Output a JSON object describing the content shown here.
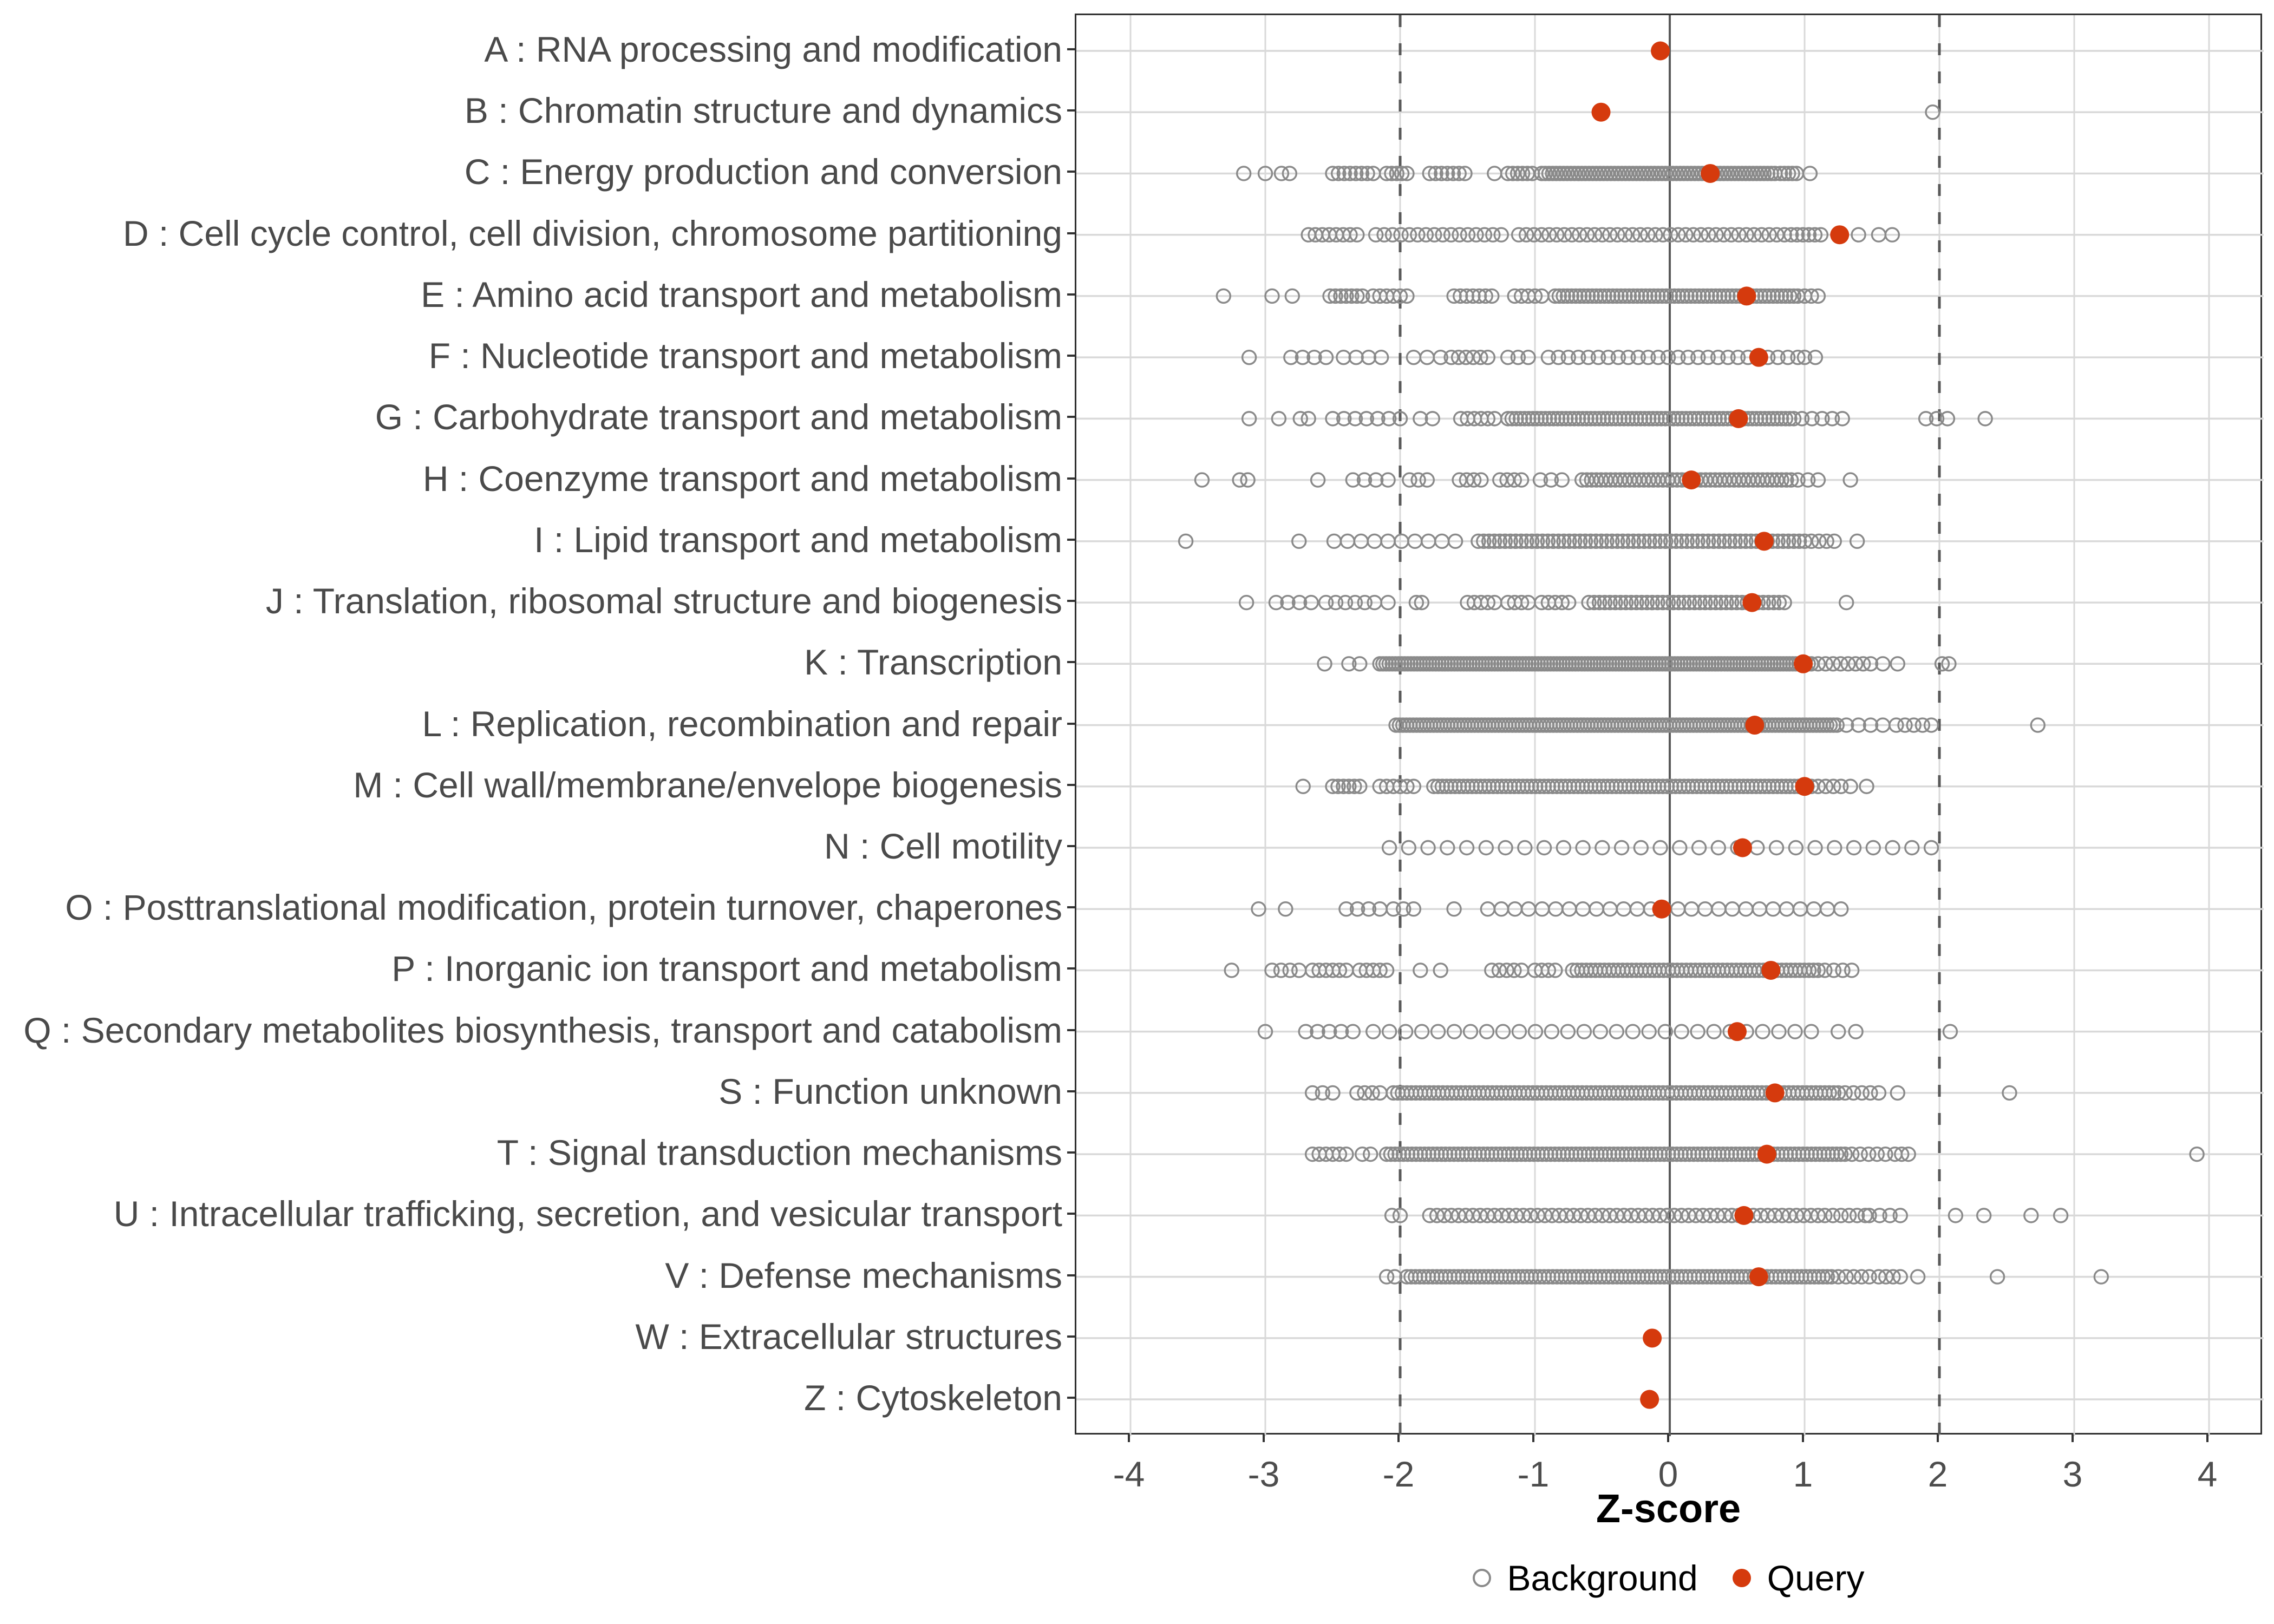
{
  "chart_data": {
    "type": "scatter",
    "subtype": "horizontal-strip-dot-plot",
    "title": "",
    "xlabel": "Z-score",
    "x_ticks": [
      -4,
      -3,
      -2,
      -1,
      0,
      1,
      2,
      3,
      4
    ],
    "xlim": [
      -4.4,
      4.4
    ],
    "grid": "on",
    "reference_lines": {
      "solid_at": 0,
      "dashed_at": [
        -2,
        2
      ]
    },
    "legend_position": "bottom",
    "legend": [
      {
        "label": "Background",
        "marker": "open-circle"
      },
      {
        "label": "Query",
        "marker": "filled-circle"
      }
    ],
    "colors": {
      "query": "#D53A0D",
      "background_stroke": "#8A8A8A",
      "gridline": "#D9D9D9",
      "reference_line": "#595959",
      "axis_text": "#4D4D4D",
      "panel_border": "#2F2F2F"
    },
    "categories": [
      {
        "label": "A : RNA processing and modification",
        "query": -0.07,
        "background_runs": []
      },
      {
        "label": "B : Chromatin structure and dynamics",
        "query": -0.51,
        "background_runs": [
          [
            1.95,
            1.95,
            1
          ]
        ]
      },
      {
        "label": "C : Energy production and conversion",
        "query": 0.3,
        "background_runs": [
          [
            -3.16,
            -3.16,
            1
          ],
          [
            -3.0,
            -3.0,
            1
          ],
          [
            -2.88,
            -2.82,
            2
          ],
          [
            -2.5,
            -2.2,
            8
          ],
          [
            -2.1,
            -1.95,
            5
          ],
          [
            -1.78,
            -1.52,
            7
          ],
          [
            -1.3,
            -1.3,
            1
          ],
          [
            -1.2,
            -1.02,
            6
          ],
          [
            -0.95,
            0.78,
            65
          ],
          [
            0.82,
            0.94,
            5
          ],
          [
            1.04,
            1.04,
            1
          ]
        ]
      },
      {
        "label": "D : Cell cycle control, cell division, chromosome partitioning",
        "query": 1.26,
        "background_runs": [
          [
            -2.68,
            -2.32,
            8
          ],
          [
            -2.18,
            -1.25,
            16
          ],
          [
            -1.12,
            0.85,
            36
          ],
          [
            0.9,
            1.12,
            6
          ],
          [
            1.4,
            1.4,
            1
          ],
          [
            1.55,
            1.65,
            2
          ]
        ]
      },
      {
        "label": "E : Amino acid transport and metabolism",
        "query": 0.57,
        "background_runs": [
          [
            -3.31,
            -3.31,
            1
          ],
          [
            -2.95,
            -2.95,
            1
          ],
          [
            -2.8,
            -2.8,
            1
          ],
          [
            -2.52,
            -2.28,
            7
          ],
          [
            -2.2,
            -1.95,
            6
          ],
          [
            -1.6,
            -1.32,
            7
          ],
          [
            -1.15,
            -0.95,
            5
          ],
          [
            -0.85,
            0.95,
            60
          ],
          [
            1.0,
            1.1,
            3
          ]
        ]
      },
      {
        "label": "F : Nucleotide transport and metabolism",
        "query": 0.66,
        "background_runs": [
          [
            -3.12,
            -3.12,
            1
          ],
          [
            -2.81,
            -2.55,
            4
          ],
          [
            -2.42,
            -2.14,
            4
          ],
          [
            -1.9,
            -1.7,
            3
          ],
          [
            -1.62,
            -1.35,
            6
          ],
          [
            -1.2,
            -1.05,
            3
          ],
          [
            -0.9,
            0.95,
            26
          ],
          [
            1.0,
            1.08,
            2
          ]
        ]
      },
      {
        "label": "G : Carbohydrate transport and metabolism",
        "query": 0.51,
        "background_runs": [
          [
            -3.12,
            -3.12,
            1
          ],
          [
            -2.9,
            -2.9,
            1
          ],
          [
            -2.74,
            -2.68,
            2
          ],
          [
            -2.5,
            -2.0,
            7
          ],
          [
            -1.85,
            -1.76,
            2
          ],
          [
            -1.55,
            -1.3,
            6
          ],
          [
            -1.2,
            0.92,
            70
          ],
          [
            0.98,
            1.28,
            5
          ],
          [
            1.9,
            2.06,
            3
          ],
          [
            2.34,
            2.34,
            1
          ]
        ]
      },
      {
        "label": "H : Coenzyme transport and metabolism",
        "query": 0.16,
        "background_runs": [
          [
            -3.47,
            -3.47,
            1
          ],
          [
            -3.19,
            -3.13,
            2
          ],
          [
            -2.61,
            -2.61,
            1
          ],
          [
            -2.35,
            -2.18,
            3
          ],
          [
            -2.09,
            -2.09,
            1
          ],
          [
            -1.93,
            -1.8,
            3
          ],
          [
            -1.56,
            -1.4,
            4
          ],
          [
            -1.26,
            -1.1,
            4
          ],
          [
            -0.96,
            -0.8,
            3
          ],
          [
            -0.65,
            0.9,
            45
          ],
          [
            0.95,
            1.1,
            3
          ],
          [
            1.34,
            1.34,
            1
          ]
        ]
      },
      {
        "label": "I : Lipid transport and metabolism",
        "query": 0.7,
        "background_runs": [
          [
            -3.59,
            -3.59,
            1
          ],
          [
            -2.75,
            -2.75,
            1
          ],
          [
            -2.49,
            -1.59,
            10
          ],
          [
            -1.42,
            1.0,
            62
          ],
          [
            1.05,
            1.22,
            4
          ],
          [
            1.39,
            1.39,
            1
          ]
        ]
      },
      {
        "label": "J : Translation, ribosomal structure and biogenesis",
        "query": 0.61,
        "background_runs": [
          [
            -3.14,
            -3.14,
            1
          ],
          [
            -2.92,
            -2.66,
            4
          ],
          [
            -2.55,
            -2.19,
            6
          ],
          [
            -2.09,
            -2.09,
            1
          ],
          [
            -1.88,
            -1.84,
            2
          ],
          [
            -1.5,
            -1.3,
            5
          ],
          [
            -1.2,
            -1.05,
            4
          ],
          [
            -0.95,
            -0.75,
            5
          ],
          [
            -0.6,
            0.85,
            38
          ],
          [
            1.31,
            1.31,
            1
          ]
        ]
      },
      {
        "label": "K : Transcription",
        "query": 0.99,
        "background_runs": [
          [
            -2.56,
            -2.56,
            1
          ],
          [
            -2.38,
            -2.3,
            2
          ],
          [
            -2.15,
            1.05,
            140
          ],
          [
            1.1,
            1.49,
            8
          ],
          [
            1.58,
            1.69,
            2
          ],
          [
            2.02,
            2.07,
            2
          ]
        ]
      },
      {
        "label": "L : Replication, recombination and repair",
        "query": 0.63,
        "background_runs": [
          [
            -2.03,
            1.24,
            130
          ],
          [
            1.31,
            1.58,
            4
          ],
          [
            1.68,
            1.94,
            5
          ],
          [
            2.73,
            2.73,
            1
          ]
        ]
      },
      {
        "label": "M : Cell wall/membrane/envelope biogenesis",
        "query": 1.0,
        "background_runs": [
          [
            -2.72,
            -2.72,
            1
          ],
          [
            -2.5,
            -2.3,
            6
          ],
          [
            -2.15,
            -1.9,
            6
          ],
          [
            -1.75,
            1.05,
            90
          ],
          [
            1.1,
            1.27,
            4
          ],
          [
            1.34,
            1.46,
            2
          ]
        ]
      },
      {
        "label": "N : Cell motility",
        "query": 0.54,
        "background_runs": [
          [
            -2.08,
            1.94,
            29
          ]
        ]
      },
      {
        "label": "O : Posttranslational modification, protein turnover, chaperones",
        "query": -0.06,
        "background_runs": [
          [
            -3.05,
            -3.05,
            1
          ],
          [
            -2.85,
            -2.85,
            1
          ],
          [
            -2.4,
            -2.15,
            4
          ],
          [
            -2.05,
            -1.9,
            3
          ],
          [
            -1.6,
            -1.6,
            1
          ],
          [
            -1.35,
            1.27,
            27
          ]
        ]
      },
      {
        "label": "P : Inorganic ion transport and metabolism",
        "query": 0.75,
        "background_runs": [
          [
            -3.25,
            -3.25,
            1
          ],
          [
            -2.95,
            -2.75,
            4
          ],
          [
            -2.65,
            -2.4,
            6
          ],
          [
            -2.3,
            -2.1,
            5
          ],
          [
            -1.85,
            -1.85,
            1
          ],
          [
            -1.7,
            -1.7,
            1
          ],
          [
            -1.32,
            -1.1,
            5
          ],
          [
            -1.0,
            -0.85,
            4
          ],
          [
            -0.72,
            1.1,
            55
          ],
          [
            1.15,
            1.35,
            4
          ]
        ]
      },
      {
        "label": "Q : Secondary metabolites biosynthesis, transport and catabolism",
        "query": 0.5,
        "background_runs": [
          [
            -3.0,
            -3.0,
            1
          ],
          [
            -2.7,
            -2.35,
            5
          ],
          [
            -2.2,
            1.05,
            28
          ],
          [
            1.25,
            1.38,
            2
          ],
          [
            2.08,
            2.08,
            1
          ]
        ]
      },
      {
        "label": "S : Function unknown",
        "query": 0.78,
        "background_runs": [
          [
            -2.65,
            -2.5,
            3
          ],
          [
            -2.32,
            -2.15,
            4
          ],
          [
            -2.05,
            1.25,
            100
          ],
          [
            1.3,
            1.55,
            5
          ],
          [
            1.69,
            1.69,
            1
          ],
          [
            2.52,
            2.52,
            1
          ]
        ]
      },
      {
        "label": "T : Signal transduction mechanisms",
        "query": 0.72,
        "background_runs": [
          [
            -2.65,
            -2.4,
            6
          ],
          [
            -2.28,
            -2.22,
            2
          ],
          [
            -2.1,
            1.3,
            110
          ],
          [
            1.35,
            1.6,
            5
          ],
          [
            1.67,
            1.77,
            3
          ],
          [
            3.91,
            3.91,
            1
          ]
        ]
      },
      {
        "label": "U : Intracellular trafficking, secretion, and vesicular transport",
        "query": 0.55,
        "background_runs": [
          [
            -2.06,
            -2.0,
            2
          ],
          [
            -1.78,
            1.1,
            55
          ],
          [
            1.15,
            1.45,
            6
          ],
          [
            1.48,
            1.71,
            4
          ],
          [
            2.12,
            2.12,
            1
          ],
          [
            2.33,
            2.33,
            1
          ],
          [
            2.68,
            2.68,
            1
          ],
          [
            2.9,
            2.9,
            1
          ]
        ]
      },
      {
        "label": "V : Defense mechanisms",
        "query": 0.66,
        "background_runs": [
          [
            -2.1,
            -2.04,
            2
          ],
          [
            -1.95,
            1.2,
            100
          ],
          [
            1.25,
            1.48,
            5
          ],
          [
            1.55,
            1.71,
            4
          ],
          [
            1.84,
            1.84,
            1
          ],
          [
            2.43,
            2.43,
            1
          ],
          [
            3.2,
            3.2,
            1
          ]
        ]
      },
      {
        "label": "W : Extracellular structures",
        "query": -0.13,
        "background_runs": []
      },
      {
        "label": "Z : Cytoskeleton",
        "query": -0.15,
        "background_runs": []
      }
    ]
  }
}
